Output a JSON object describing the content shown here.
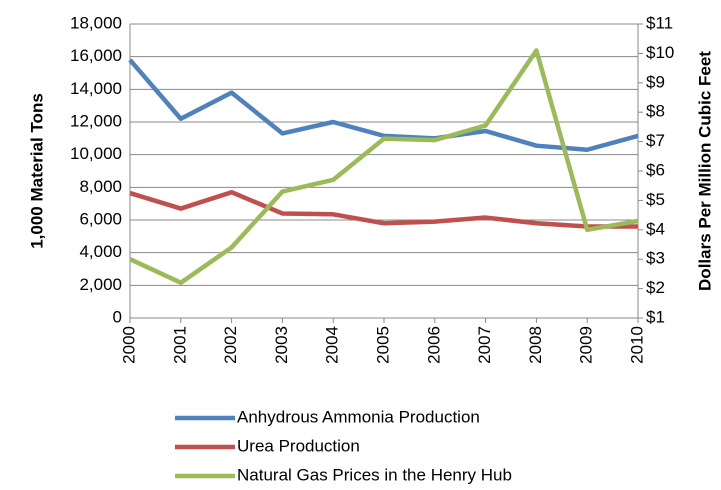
{
  "chart_data": {
    "type": "line",
    "y_label": "1,000 Material Tons",
    "y2_label": "Dollars Per Million Cubic Feet",
    "categories": [
      "2000",
      "2001",
      "2002",
      "2003",
      "2004",
      "2005",
      "2006",
      "2007",
      "2008",
      "2009",
      "2010"
    ],
    "series": [
      {
        "name": "Anhydrous Ammonia Production",
        "color": "#4f81bd",
        "values": [
          15800,
          12200,
          13800,
          11300,
          12000,
          11150,
          11000,
          11450,
          10550,
          10300,
          11150
        ]
      },
      {
        "name": "Urea Production",
        "color": "#c0504d",
        "values": [
          7650,
          6700,
          7700,
          6400,
          6350,
          5800,
          5900,
          6150,
          5800,
          5600,
          5600
        ]
      },
      {
        "name": "Natural Gas Prices in the Henry Hub",
        "color": "#9bbb59",
        "axis": "y2",
        "values": [
          3.0,
          2.2,
          3.4,
          5.3,
          5.7,
          7.1,
          7.05,
          7.55,
          10.1,
          4.0,
          4.3
        ]
      }
    ],
    "ylim": [
      0,
      18000
    ],
    "yticks": [
      0,
      {
        "value": 2000,
        "label": "2,000"
      },
      {
        "value": 4000,
        "label": "4,000"
      },
      {
        "value": 6000,
        "label": "6,000"
      },
      {
        "value": 8000,
        "label": "8,000"
      },
      {
        "value": 10000,
        "label": "10,000"
      },
      {
        "value": 12000,
        "label": "12,000"
      },
      {
        "value": 14000,
        "label": "14,000"
      },
      {
        "value": 16000,
        "label": "16,000"
      },
      {
        "value": 18000,
        "label": "18,000"
      }
    ],
    "y2lim": [
      1,
      11
    ],
    "y2ticks": [
      {
        "value": 1,
        "label": "$1"
      },
      {
        "value": 2,
        "label": "$2"
      },
      {
        "value": 3,
        "label": "$3"
      },
      {
        "value": 4,
        "label": "$4"
      },
      {
        "value": 5,
        "label": "$5"
      },
      {
        "value": 6,
        "label": "$6"
      },
      {
        "value": 7,
        "label": "$7"
      },
      {
        "value": 8,
        "label": "$8"
      },
      {
        "value": 9,
        "label": "$9"
      },
      {
        "value": 10,
        "label": "$10"
      },
      {
        "value": 11,
        "label": "$11"
      }
    ],
    "grid": true
  }
}
